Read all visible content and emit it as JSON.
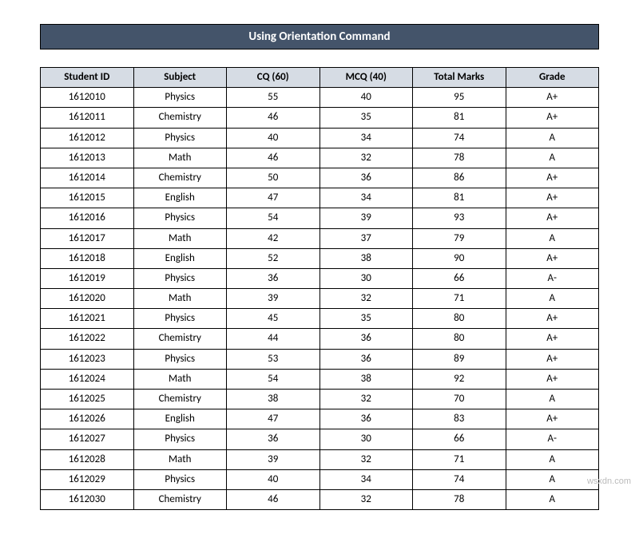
{
  "title": "Using Orientation Command",
  "columns": [
    "Student ID",
    "Subject",
    "CQ  (60)",
    "MCQ (40)",
    "Total Marks",
    "Grade"
  ],
  "rows": [
    [
      "1612010",
      "Physics",
      "55",
      "40",
      "95",
      "A+"
    ],
    [
      "1612011",
      "Chemistry",
      "46",
      "35",
      "81",
      "A+"
    ],
    [
      "1612012",
      "Physics",
      "40",
      "34",
      "74",
      "A"
    ],
    [
      "1612013",
      "Math",
      "46",
      "32",
      "78",
      "A"
    ],
    [
      "1612014",
      "Chemistry",
      "50",
      "36",
      "86",
      "A+"
    ],
    [
      "1612015",
      "English",
      "47",
      "34",
      "81",
      "A+"
    ],
    [
      "1612016",
      "Physics",
      "54",
      "39",
      "93",
      "A+"
    ],
    [
      "1612017",
      "Math",
      "42",
      "37",
      "79",
      "A"
    ],
    [
      "1612018",
      "English",
      "52",
      "38",
      "90",
      "A+"
    ],
    [
      "1612019",
      "Physics",
      "36",
      "30",
      "66",
      "A-"
    ],
    [
      "1612020",
      "Math",
      "39",
      "32",
      "71",
      "A"
    ],
    [
      "1612021",
      "Physics",
      "45",
      "35",
      "80",
      "A+"
    ],
    [
      "1612022",
      "Chemistry",
      "44",
      "36",
      "80",
      "A+"
    ],
    [
      "1612023",
      "Physics",
      "53",
      "36",
      "89",
      "A+"
    ],
    [
      "1612024",
      "Math",
      "54",
      "38",
      "92",
      "A+"
    ],
    [
      "1612025",
      "Chemistry",
      "38",
      "32",
      "70",
      "A"
    ],
    [
      "1612026",
      "English",
      "47",
      "36",
      "83",
      "A+"
    ],
    [
      "1612027",
      "Physics",
      "36",
      "30",
      "66",
      "A-"
    ],
    [
      "1612028",
      "Math",
      "39",
      "32",
      "71",
      "A"
    ],
    [
      "1612029",
      "Physics",
      "40",
      "34",
      "74",
      "A"
    ],
    [
      "1612030",
      "Chemistry",
      "46",
      "32",
      "78",
      "A"
    ]
  ],
  "styles": {
    "title_bg": "#44546a",
    "title_fg": "#ffffff",
    "header_bg": "#d6dce4",
    "border_color": "#000000",
    "body_font_size": 13,
    "title_font_size": 15
  },
  "watermark": "wsxdn.com"
}
